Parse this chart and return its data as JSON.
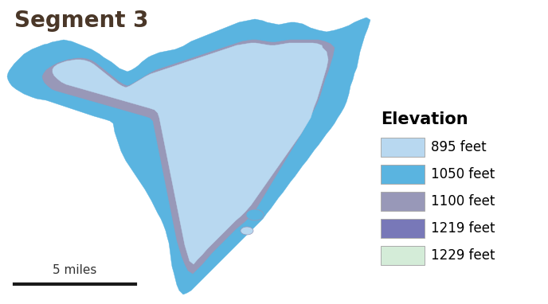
{
  "title": "Segment 3",
  "title_fontsize": 20,
  "title_color": "#4a3728",
  "title_weight": "bold",
  "background_color": "#ffffff",
  "legend_title": "Elevation",
  "legend_title_fontsize": 15,
  "legend_title_weight": "bold",
  "legend_items": [
    {
      "label": "895 feet",
      "color": "#b8d8f0"
    },
    {
      "label": "1050 feet",
      "color": "#5ab4e0"
    },
    {
      "label": "1100 feet",
      "color": "#9898b8"
    },
    {
      "label": "1219 feet",
      "color": "#7878b8"
    },
    {
      "label": "1229 feet",
      "color": "#d4ecd8"
    }
  ],
  "legend_item_fontsize": 12,
  "scalebar_label": "5 miles",
  "figsize": [
    6.88,
    3.82
  ],
  "dpi": 100,
  "map_xlim": [
    0,
    688
  ],
  "map_ylim": [
    0,
    382
  ]
}
